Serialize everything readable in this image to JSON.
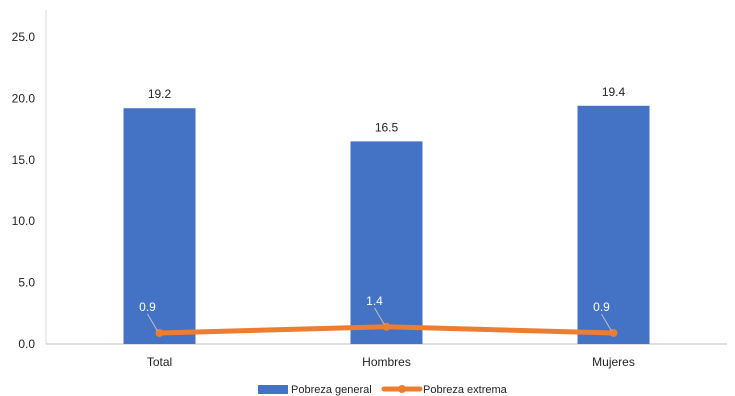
{
  "chart_data": {
    "type": "bar",
    "categories": [
      "Total",
      "Hombres",
      "Mujeres"
    ],
    "series": [
      {
        "name": "Pobreza general",
        "type": "bar",
        "color": "#4472C4",
        "values": [
          19.2,
          16.5,
          19.4
        ],
        "labels": [
          "19.2",
          "16.5",
          "19.4"
        ]
      },
      {
        "name": "Pobreza extrema",
        "type": "line",
        "color": "#ED7D31",
        "values": [
          0.9,
          1.4,
          0.9
        ],
        "labels": [
          "0.9",
          "1.4",
          "0.9"
        ]
      }
    ],
    "y_ticks": [
      "0.0",
      "5.0",
      "10.0",
      "15.0",
      "20.0",
      "25.0"
    ],
    "ylim": [
      0,
      25
    ],
    "grid": false,
    "legend_position": "bottom"
  }
}
